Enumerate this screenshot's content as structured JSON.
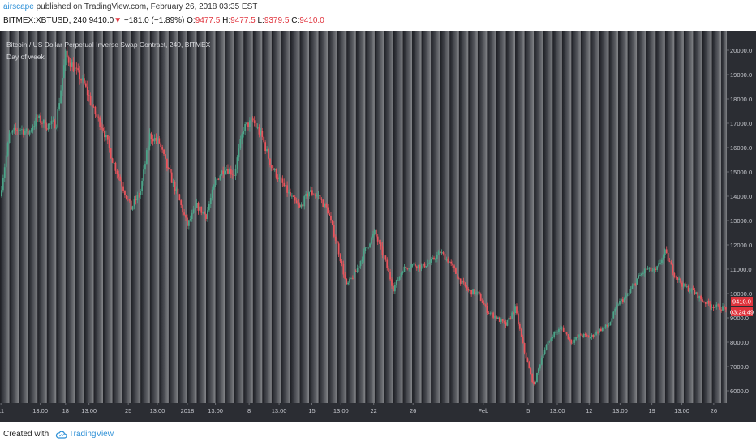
{
  "header": {
    "author": "airscape",
    "published_text": " published on TradingView.com, February 26, 2018 03:35 EST",
    "symbol": "BITMEX:XBTUSD, 240",
    "last": "9410.0",
    "change_arrow": "▼",
    "change": "−181.0 (−1.89%)",
    "o_label": "O:",
    "o_value": "9477.5",
    "h_label": "H:",
    "h_value": "9477.5",
    "l_label": "L:",
    "l_value": "9379.5",
    "c_label": "C:",
    "c_value": "9410.0"
  },
  "legend": {
    "title": "Bitcoin / US Dollar Perpetual Inverse Swap Contract, 240, BITMEX",
    "indicator": "Day of week"
  },
  "footer": {
    "created_with": "Created with",
    "brand": "TradingView"
  },
  "price_label": "9410.0",
  "countdown_label": "03:24:49",
  "colors": {
    "up": "#4ca388",
    "down": "#e8545c",
    "price_tag": "#e0343d",
    "axis_bg": "#2b2d33",
    "axis_text": "#c4c6cc",
    "tv_blue": "#2c8fd6"
  },
  "chart_data": {
    "type": "candlestick",
    "title": "Bitcoin / US Dollar Perpetual Inverse Swap Contract, 240, BITMEX",
    "indicator": "Day of week",
    "y_ticks": [
      6000,
      7000,
      8000,
      9000,
      10000,
      11000,
      12000,
      13000,
      14000,
      15000,
      16000,
      17000,
      18000,
      19000,
      20000
    ],
    "y_tick_labels": [
      "6000.0",
      "7000.0",
      "8000.0",
      "9000.0",
      "10000.0",
      "11000.0",
      "12000.0",
      "13000.0",
      "14000.0",
      "15000.0",
      "16000.0",
      "17000.0",
      "18000.0",
      "19000.0",
      "20000.0"
    ],
    "ylim": [
      5500,
      20800
    ],
    "x_labels": [
      {
        "label": "11",
        "day": 0.1
      },
      {
        "label": "13:00",
        "day": 4.3
      },
      {
        "label": "18",
        "day": 7.0
      },
      {
        "label": "13:00",
        "day": 9.5
      },
      {
        "label": "25",
        "day": 13.7
      },
      {
        "label": "13:00",
        "day": 16.8
      },
      {
        "label": "2018",
        "day": 20.0
      },
      {
        "label": "13:00",
        "day": 23.0
      },
      {
        "label": "8",
        "day": 26.6
      },
      {
        "label": "13:00",
        "day": 29.8
      },
      {
        "label": "15",
        "day": 33.3
      },
      {
        "label": "13:00",
        "day": 36.4
      },
      {
        "label": "22",
        "day": 39.9
      },
      {
        "label": "26",
        "day": 44.1
      },
      {
        "label": "Feb",
        "day": 51.6
      },
      {
        "label": "5",
        "day": 56.4
      },
      {
        "label": "13:00",
        "day": 59.5
      },
      {
        "label": "12",
        "day": 62.9
      },
      {
        "label": "13:00",
        "day": 66.2
      },
      {
        "label": "19",
        "day": 69.6
      },
      {
        "label": "13:00",
        "day": 72.8
      },
      {
        "label": "26",
        "day": 76.2
      }
    ],
    "xlim": [
      0,
      77.6
    ],
    "close_path": [
      [
        0,
        14000
      ],
      [
        1,
        16500
      ],
      [
        2,
        16800
      ],
      [
        3,
        16600
      ],
      [
        4,
        17200
      ],
      [
        5,
        16900
      ],
      [
        6,
        17000
      ],
      [
        7,
        19800
      ],
      [
        8,
        19200
      ],
      [
        9,
        18600
      ],
      [
        10,
        17500
      ],
      [
        11,
        16800
      ],
      [
        12,
        15500
      ],
      [
        13,
        14500
      ],
      [
        14,
        13500
      ],
      [
        15,
        14200
      ],
      [
        16,
        16500
      ],
      [
        17,
        16200
      ],
      [
        18,
        15000
      ],
      [
        19,
        14000
      ],
      [
        20,
        12800
      ],
      [
        21,
        13600
      ],
      [
        22,
        13200
      ],
      [
        23,
        14600
      ],
      [
        24,
        15200
      ],
      [
        25,
        14900
      ],
      [
        26,
        16800
      ],
      [
        27,
        17100
      ],
      [
        28,
        16400
      ],
      [
        29,
        15200
      ],
      [
        30,
        14600
      ],
      [
        31,
        14000
      ],
      [
        32,
        13500
      ],
      [
        33,
        14200
      ],
      [
        34,
        14000
      ],
      [
        35,
        13400
      ],
      [
        36,
        12000
      ],
      [
        37,
        10300
      ],
      [
        38,
        10900
      ],
      [
        39,
        11800
      ],
      [
        40,
        12500
      ],
      [
        41,
        11500
      ],
      [
        42,
        10200
      ],
      [
        43,
        11000
      ],
      [
        44,
        11200
      ],
      [
        45,
        11100
      ],
      [
        46,
        11300
      ],
      [
        47,
        11700
      ],
      [
        48,
        11300
      ],
      [
        49,
        10600
      ],
      [
        50,
        10100
      ],
      [
        51,
        10000
      ],
      [
        52,
        9300
      ],
      [
        53,
        9000
      ],
      [
        54,
        8700
      ],
      [
        55,
        9400
      ],
      [
        56,
        7600
      ],
      [
        57,
        6200
      ],
      [
        58,
        7600
      ],
      [
        59,
        8300
      ],
      [
        60,
        8600
      ],
      [
        61,
        8000
      ],
      [
        62,
        8300
      ],
      [
        63,
        8200
      ],
      [
        64,
        8500
      ],
      [
        65,
        8700
      ],
      [
        66,
        9600
      ],
      [
        67,
        9900
      ],
      [
        68,
        10600
      ],
      [
        69,
        11000
      ],
      [
        70,
        10900
      ],
      [
        71,
        11700
      ],
      [
        72,
        10800
      ],
      [
        73,
        10300
      ],
      [
        74,
        10100
      ],
      [
        75,
        9700
      ],
      [
        76,
        9500
      ],
      [
        77,
        9410
      ]
    ],
    "last_price": 9410.0
  }
}
